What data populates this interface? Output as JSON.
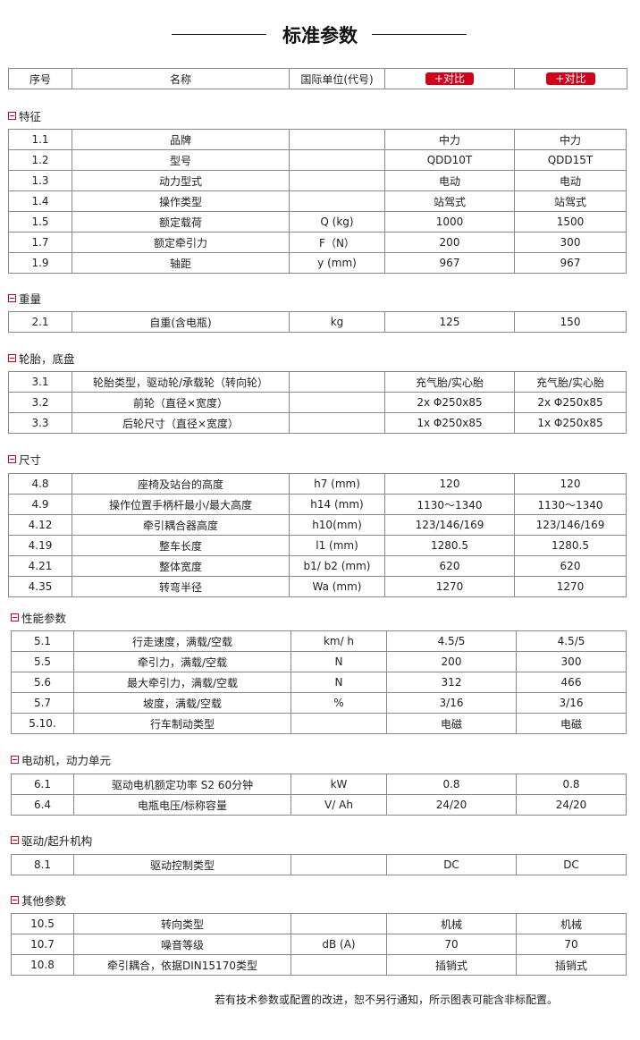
{
  "title": "标准参数",
  "header": {
    "cols": [
      "序号",
      "名称",
      "国际单位(代号)"
    ],
    "compare_label": "+对比"
  },
  "sections": [
    {
      "name": "特征",
      "rows": [
        [
          "1.1",
          "品牌",
          "",
          "中力",
          "中力"
        ],
        [
          "1.2",
          "型号",
          "",
          "QDD10T",
          "QDD15T"
        ],
        [
          "1.3",
          "动力型式",
          "",
          "电动",
          "电动"
        ],
        [
          "1.4",
          "操作类型",
          "",
          "站驾式",
          "站驾式"
        ],
        [
          "1.5",
          "额定载荷",
          "Q (kg)",
          "1000",
          "1500"
        ],
        [
          "1.7",
          "额定牵引力",
          "F（N）",
          "200",
          "300"
        ],
        [
          "1.9",
          "轴距",
          "y (mm)",
          "967",
          "967"
        ]
      ]
    },
    {
      "name": "重量",
      "rows": [
        [
          "2.1",
          "自重(含电瓶)",
          "kg",
          "125",
          "150"
        ]
      ]
    },
    {
      "name": "轮胎，底盘",
      "rows": [
        [
          "3.1",
          "轮胎类型，驱动轮/承载轮（转向轮）",
          "",
          "充气胎/实心胎",
          "充气胎/实心胎"
        ],
        [
          "3.2",
          "前轮（直径×宽度）",
          "",
          "2x Φ250x85",
          "2x Φ250x85"
        ],
        [
          "3.3",
          "后轮尺寸（直径×宽度）",
          "",
          "1x Φ250x85",
          "1x Φ250x85"
        ]
      ]
    },
    {
      "name": "尺寸",
      "rows": [
        [
          "4.8",
          "座椅及站台的高度",
          "h7 (mm)",
          "120",
          "120"
        ],
        [
          "4.9",
          "操作位置手柄杆最小/最大高度",
          "h14 (mm)",
          "1130～1340",
          "1130～1340"
        ],
        [
          "4.12",
          "牵引耦合器高度",
          "h10(mm)",
          "123/146/169",
          "123/146/169"
        ],
        [
          "4.19",
          "整车长度",
          "l1 (mm)",
          "1280.5",
          "1280.5"
        ],
        [
          "4.21",
          "整体宽度",
          "b1/ b2 (mm)",
          "620",
          "620"
        ],
        [
          "4.35",
          "转弯半径",
          "Wa (mm)",
          "1270",
          "1270"
        ]
      ]
    },
    {
      "name": "性能参数",
      "rows": [
        [
          "5.1",
          "行走速度，满载/空载",
          "km/ h",
          "4.5/5",
          "4.5/5"
        ],
        [
          "5.5",
          "牵引力，满载/空载",
          "N",
          "200",
          "300"
        ],
        [
          "5.6",
          "最大牵引力，满载/空载",
          "N",
          "312",
          "466"
        ],
        [
          "5.7",
          "坡度，满载/空载",
          "%",
          "3/16",
          "3/16"
        ],
        [
          "5.10.",
          "行车制动类型",
          "",
          "电磁",
          "电磁"
        ]
      ]
    },
    {
      "name": "电动机，动力单元",
      "rows": [
        [
          "6.1",
          "驱动电机额定功率 S2 60分钟",
          "kW",
          "0.8",
          "0.8"
        ],
        [
          "6.4",
          "电瓶电压/标称容量",
          "V/ Ah",
          "24/20",
          "24/20"
        ]
      ]
    },
    {
      "name": "驱动/起升机构",
      "rows": [
        [
          "8.1",
          "驱动控制类型",
          "",
          "DC",
          "DC"
        ]
      ]
    },
    {
      "name": "其他参数",
      "rows": [
        [
          "10.5",
          "转向类型",
          "",
          "机械",
          "机械"
        ],
        [
          "10.7",
          "噪音等级",
          "dB (A)",
          "70",
          "70"
        ],
        [
          "10.8",
          "牵引耦合，依据DIN15170类型",
          "",
          "插销式",
          "插销式"
        ]
      ]
    }
  ],
  "footer": "若有技术参数或配置的改进，恕不另行通知，所示图表可能含非标配置。",
  "colors": {
    "accent": "#d0021b",
    "border": "#8a8a8a"
  }
}
